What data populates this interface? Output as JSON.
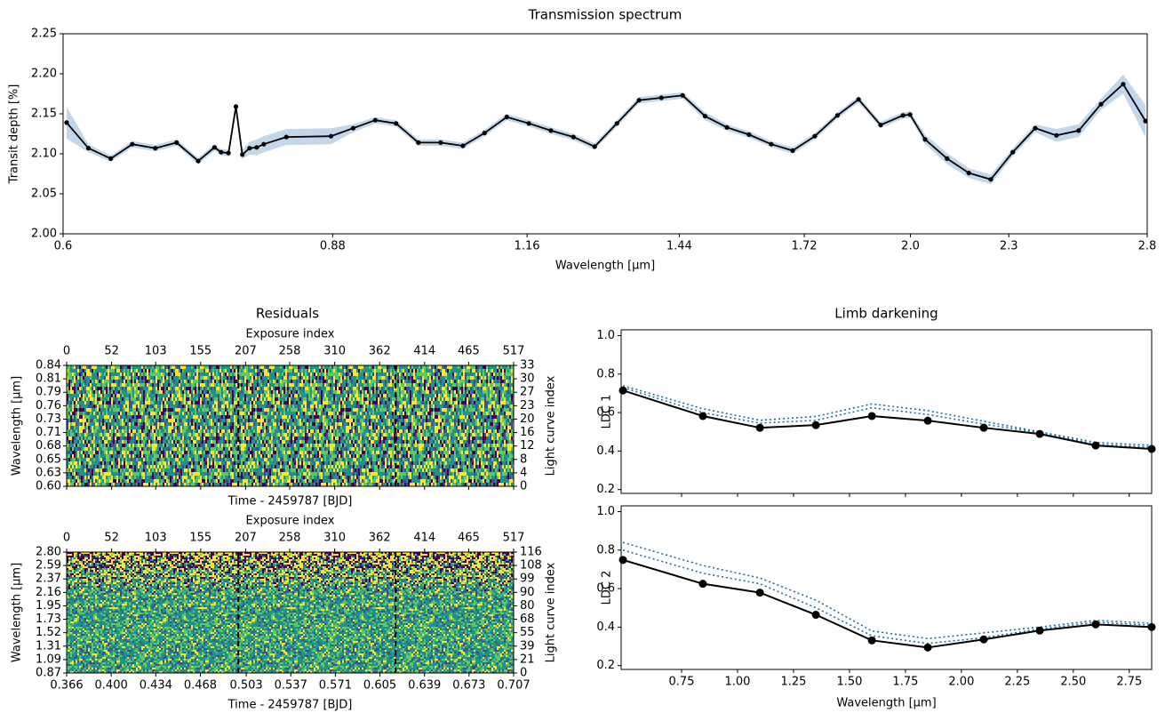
{
  "chart_data": [
    {
      "type": "line",
      "title": "Transmission spectrum",
      "xlabel": "Wavelength [$\\mu$m]",
      "ylabel": "Transit depth [%]",
      "xscale": "log",
      "xlim": [
        0.6,
        2.8
      ],
      "xticks": [
        0.6,
        0.88,
        1.16,
        1.44,
        1.72,
        {
          "value": 2.0,
          "label": "2.0"
        },
        2.3,
        2.8
      ],
      "ylim": [
        2.0,
        2.25
      ],
      "yticks": [
        {
          "value": 2.0,
          "label": "2.00"
        },
        2.05,
        {
          "value": 2.1,
          "label": "2.10"
        },
        2.15,
        {
          "value": 2.2,
          "label": "2.20"
        },
        2.25
      ],
      "color": "#000000",
      "band_color": "#c3d7eb",
      "x": [
        0.603,
        0.622,
        0.642,
        0.662,
        0.684,
        0.705,
        0.727,
        0.744,
        0.751,
        0.759,
        0.767,
        0.774,
        0.782,
        0.79,
        0.798,
        0.824,
        0.878,
        0.906,
        0.935,
        0.963,
        0.994,
        1.026,
        1.059,
        1.092,
        1.127,
        1.163,
        1.2,
        1.239,
        1.277,
        1.318,
        1.36,
        1.404,
        1.447,
        1.494,
        1.541,
        1.59,
        1.641,
        1.692,
        1.746,
        1.803,
        1.858,
        1.917,
        1.979,
        1.999,
        2.042,
        2.107,
        2.173,
        2.242,
        2.313,
        2.388,
        2.461,
        2.54,
        2.622,
        2.706,
        2.793
      ],
      "values": [
        2.139,
        2.107,
        2.094,
        2.112,
        2.107,
        2.114,
        2.091,
        2.108,
        2.102,
        2.101,
        2.159,
        2.099,
        2.107,
        2.108,
        2.112,
        2.121,
        2.122,
        2.132,
        2.142,
        2.138,
        2.114,
        2.114,
        2.11,
        2.126,
        2.146,
        2.138,
        2.129,
        2.121,
        2.109,
        2.138,
        2.167,
        2.17,
        2.173,
        2.147,
        2.133,
        2.124,
        2.112,
        2.104,
        2.122,
        2.148,
        2.168,
        2.136,
        2.148,
        2.149,
        2.118,
        2.094,
        2.076,
        2.068,
        2.102,
        2.132,
        2.123,
        2.129,
        2.162,
        2.187,
        2.141
      ],
      "errors": [
        0.02,
        0.005,
        0.004,
        0.004,
        0.004,
        0.004,
        0.004,
        0.004,
        0.004,
        0.004,
        0.004,
        0.006,
        0.008,
        0.01,
        0.01,
        0.01,
        0.01,
        0.005,
        0.004,
        0.004,
        0.004,
        0.004,
        0.004,
        0.004,
        0.004,
        0.004,
        0.004,
        0.004,
        0.004,
        0.004,
        0.004,
        0.004,
        0.004,
        0.005,
        0.004,
        0.004,
        0.004,
        0.004,
        0.004,
        0.004,
        0.004,
        0.004,
        0.004,
        0.004,
        0.006,
        0.007,
        0.006,
        0.006,
        0.005,
        0.005,
        0.008,
        0.008,
        0.007,
        0.012,
        0.02
      ]
    },
    {
      "type": "heatmap",
      "title": "Residuals",
      "x2label": "Exposure index",
      "xlabel": "Time - 2459787 [BJD]",
      "ylabel": "Wavelength [$\\mu$m]",
      "y2label": "Light curve index",
      "xlim": [
        0.366,
        0.707
      ],
      "x2lim": [
        0,
        517
      ],
      "x2ticks": [
        0,
        52,
        103,
        155,
        207,
        258,
        310,
        362,
        414,
        465,
        517
      ],
      "ylabels": [
        "0.60",
        "0.63",
        "0.65",
        "0.68",
        "0.71",
        "0.73",
        "0.76",
        "0.79",
        "0.81",
        "0.84"
      ],
      "y2labels": [
        "0",
        "4",
        "8",
        "12",
        "16",
        "20",
        "23",
        "27",
        "30",
        "33"
      ],
      "vlines": [
        0.497,
        0.617
      ]
    },
    {
      "type": "heatmap",
      "x2label": "Exposure index",
      "xlabel": "Time - 2459787 [BJD]",
      "ylabel": "Wavelength [$\\mu$m]",
      "y2label": "Light curve index",
      "xlim": [
        0.366,
        0.707
      ],
      "x2lim": [
        0,
        517
      ],
      "xticks": [
        0.366,
        {
          "value": 0.4,
          "label": "0.400"
        },
        0.434,
        0.468,
        0.503,
        0.537,
        0.571,
        0.605,
        0.639,
        0.673,
        0.707
      ],
      "x2ticks": [
        0,
        52,
        103,
        155,
        207,
        258,
        310,
        362,
        414,
        465,
        517
      ],
      "ylabels": [
        "0.87",
        "1.09",
        "1.31",
        "1.52",
        "1.73",
        "1.95",
        "2.16",
        "2.37",
        "2.59",
        "2.80"
      ],
      "y2labels": [
        "0",
        "21",
        "39",
        "55",
        "68",
        "80",
        "90",
        "99",
        "108",
        "116"
      ],
      "vlines": [
        0.497,
        0.617
      ]
    },
    {
      "type": "ldc",
      "title": "Limb darkening",
      "ylabel": "LDC 1",
      "xlim": [
        0.48,
        2.85
      ],
      "ylim": [
        0.18,
        1.03
      ],
      "yticks": [
        0.2,
        0.4,
        0.6,
        0.8,
        {
          "value": 1.0,
          "label": "1.0"
        }
      ],
      "x": [
        0.488,
        0.845,
        1.1,
        1.35,
        1.6,
        1.85,
        2.1,
        2.35,
        2.6,
        2.85
      ],
      "series": [
        {
          "color": "#1f6f9c",
          "dash": "dotted",
          "values": [
            0.74,
            0.62,
            0.56,
            0.58,
            0.645,
            0.61,
            0.555,
            0.5,
            0.445,
            0.43
          ]
        },
        {
          "color": "#1f6f9c",
          "dash": "dotted",
          "values": [
            0.73,
            0.6,
            0.545,
            0.56,
            0.625,
            0.59,
            0.54,
            0.495,
            0.435,
            0.42
          ]
        },
        {
          "color": "#000000",
          "dash": "solid",
          "markers": true,
          "values": [
            0.715,
            0.582,
            0.521,
            0.535,
            0.582,
            0.558,
            0.521,
            0.489,
            0.429,
            0.411
          ]
        }
      ]
    },
    {
      "type": "ldc",
      "xlabel": "Wavelength [$\\mu$m]",
      "ylabel": "LDC 2",
      "xlim": [
        0.48,
        2.85
      ],
      "ylim": [
        0.18,
        1.03
      ],
      "xticks": [
        0.75,
        {
          "value": 1.0,
          "label": "1.00"
        },
        1.25,
        {
          "value": 1.5,
          "label": "1.50"
        },
        1.75,
        {
          "value": 2.0,
          "label": "2.00"
        },
        2.25,
        {
          "value": 2.5,
          "label": "2.50"
        },
        2.75
      ],
      "yticks": [
        0.2,
        0.4,
        0.6,
        0.8,
        {
          "value": 1.0,
          "label": "1.0"
        }
      ],
      "x": [
        0.488,
        0.845,
        1.1,
        1.35,
        1.6,
        1.85,
        2.1,
        2.35,
        2.6,
        2.85
      ],
      "series": [
        {
          "color": "#1f6f9c",
          "dash": "dotted",
          "values": [
            0.84,
            0.72,
            0.655,
            0.54,
            0.38,
            0.34,
            0.37,
            0.4,
            0.435,
            0.42
          ]
        },
        {
          "color": "#1f6f9c",
          "dash": "dotted",
          "values": [
            0.8,
            0.68,
            0.625,
            0.5,
            0.355,
            0.315,
            0.345,
            0.39,
            0.425,
            0.41
          ]
        },
        {
          "color": "#000000",
          "dash": "solid",
          "markers": true,
          "values": [
            0.749,
            0.625,
            0.579,
            0.464,
            0.331,
            0.294,
            0.336,
            0.382,
            0.414,
            0.4
          ]
        }
      ]
    }
  ]
}
